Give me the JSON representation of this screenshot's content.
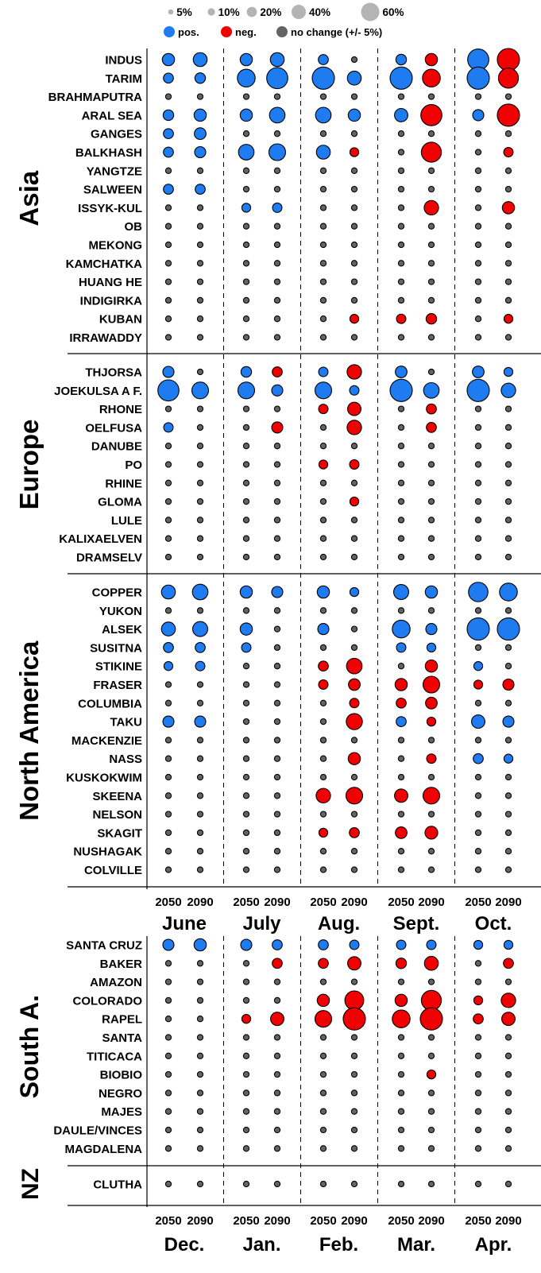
{
  "chart_data": {
    "type": "scatter",
    "title": "",
    "legend": {
      "size_labels": [
        "5%",
        "10%",
        "20%",
        "40%",
        "60%"
      ],
      "size_values": [
        5,
        10,
        20,
        40,
        60
      ],
      "color_labels": [
        "pos.",
        "neg.",
        "no change (+/- 5%)"
      ]
    },
    "colors": {
      "pos": "#1E7BF0",
      "neg": "#F00000",
      "none": "#646464",
      "legend_size": "#b4b4b4"
    },
    "encoding": "Each value is the percent change; sign gives color, magnitude gives size. |value| <= 5 is 'no change'.",
    "columns": [
      "2050",
      "2090",
      "2050",
      "2090",
      "2050",
      "2090",
      "2050",
      "2090",
      "2050",
      "2090"
    ],
    "months_top": [
      "June",
      "July",
      "Aug.",
      "Sept.",
      "Oct."
    ],
    "months_bottom": [
      "Dec.",
      "Jan.",
      "Feb.",
      "Mar.",
      "Apr."
    ],
    "groups": [
      {
        "region": "Asia",
        "rivers": [
          {
            "name": "INDUS",
            "values": [
              12,
              15,
              12,
              15,
              8,
              0,
              9,
              -12,
              28,
              -30
            ]
          },
          {
            "name": "TARIM",
            "values": [
              8,
              9,
              22,
              28,
              32,
              15,
              44,
              -22,
              40,
              -26
            ]
          },
          {
            "name": "BRAHMAPUTRA",
            "values": [
              0,
              0,
              0,
              0,
              0,
              0,
              0,
              0,
              0,
              0
            ]
          },
          {
            "name": "ARAL SEA",
            "values": [
              9,
              12,
              12,
              18,
              18,
              12,
              14,
              -28,
              10,
              -45
            ]
          },
          {
            "name": "GANGES",
            "values": [
              8,
              11,
              0,
              0,
              0,
              0,
              0,
              0,
              0,
              0
            ]
          },
          {
            "name": "BALKHASH",
            "values": [
              8,
              10,
              18,
              20,
              15,
              -6,
              0,
              -26,
              0,
              -7
            ]
          },
          {
            "name": "YANGTZE",
            "values": [
              0,
              0,
              0,
              0,
              0,
              0,
              0,
              0,
              0,
              0
            ]
          },
          {
            "name": "SALWEEN",
            "values": [
              8,
              8,
              0,
              0,
              0,
              0,
              0,
              0,
              0,
              0
            ]
          },
          {
            "name": "ISSYK-KUL",
            "values": [
              0,
              0,
              6,
              7,
              0,
              0,
              0,
              -16,
              0,
              -12
            ]
          },
          {
            "name": "OB",
            "values": [
              0,
              0,
              0,
              0,
              0,
              0,
              0,
              0,
              0,
              0
            ]
          },
          {
            "name": "MEKONG",
            "values": [
              0,
              0,
              0,
              0,
              0,
              0,
              0,
              0,
              0,
              0
            ]
          },
          {
            "name": "KAMCHATKA",
            "values": [
              0,
              0,
              0,
              0,
              0,
              0,
              0,
              0,
              0,
              0
            ]
          },
          {
            "name": "HUANG HE",
            "values": [
              0,
              0,
              0,
              0,
              0,
              0,
              0,
              0,
              0,
              0
            ]
          },
          {
            "name": "INDIGIRKA",
            "values": [
              0,
              0,
              0,
              0,
              0,
              0,
              0,
              0,
              0,
              0
            ]
          },
          {
            "name": "KUBAN",
            "values": [
              0,
              0,
              0,
              0,
              0,
              -6,
              -7,
              -9,
              0,
              -6
            ]
          },
          {
            "name": "IRRAWADDY",
            "values": [
              0,
              0,
              0,
              0,
              0,
              0,
              0,
              0,
              0,
              0
            ]
          }
        ]
      },
      {
        "region": "Europe",
        "rivers": [
          {
            "name": "THJORSA",
            "values": [
              10,
              0,
              9,
              -8,
              7,
              -16,
              11,
              0,
              11,
              6
            ]
          },
          {
            "name": "JOEKULSA A F.",
            "values": [
              28,
              20,
              20,
              10,
              20,
              7,
              32,
              18,
              30,
              16
            ]
          },
          {
            "name": "RHONE",
            "values": [
              0,
              0,
              0,
              0,
              -7,
              -14,
              0,
              -8,
              0,
              0
            ]
          },
          {
            "name": "OELFUSA",
            "values": [
              7,
              0,
              0,
              -10,
              0,
              -16,
              0,
              -8,
              0,
              0
            ]
          },
          {
            "name": "DANUBE",
            "values": [
              0,
              0,
              0,
              0,
              0,
              0,
              0,
              0,
              0,
              0
            ]
          },
          {
            "name": "PO",
            "values": [
              0,
              0,
              0,
              0,
              -6,
              -7,
              0,
              0,
              0,
              0
            ]
          },
          {
            "name": "RHINE",
            "values": [
              0,
              0,
              0,
              0,
              0,
              0,
              0,
              0,
              0,
              0
            ]
          },
          {
            "name": "GLOMA",
            "values": [
              0,
              0,
              0,
              0,
              0,
              -6,
              0,
              0,
              0,
              0
            ]
          },
          {
            "name": "LULE",
            "values": [
              0,
              0,
              0,
              0,
              0,
              0,
              0,
              0,
              0,
              0
            ]
          },
          {
            "name": "KALIXAELVEN",
            "values": [
              0,
              0,
              0,
              0,
              0,
              0,
              0,
              0,
              0,
              0
            ]
          },
          {
            "name": "DRAMSELV",
            "values": [
              0,
              0,
              0,
              0,
              0,
              0,
              0,
              0,
              0,
              0
            ]
          }
        ]
      },
      {
        "region": "North America",
        "rivers": [
          {
            "name": "COPPER",
            "values": [
              15,
              18,
              12,
              10,
              12,
              6,
              17,
              12,
              25,
              22
            ]
          },
          {
            "name": "YUKON",
            "values": [
              0,
              0,
              0,
              0,
              0,
              0,
              0,
              0,
              0,
              0
            ]
          },
          {
            "name": "ALSEK",
            "values": [
              15,
              17,
              12,
              0,
              10,
              0,
              22,
              10,
              45,
              42
            ]
          },
          {
            "name": "SUSITNA",
            "values": [
              8,
              8,
              7,
              0,
              0,
              0,
              7,
              6,
              0,
              0
            ]
          },
          {
            "name": "STIKINE",
            "values": [
              6,
              7,
              0,
              0,
              -8,
              -18,
              0,
              -12,
              6,
              0
            ]
          },
          {
            "name": "FRASER",
            "values": [
              0,
              0,
              0,
              0,
              -7,
              -11,
              -12,
              -20,
              -6,
              -10
            ]
          },
          {
            "name": "COLUMBIA",
            "values": [
              0,
              0,
              0,
              0,
              0,
              -7,
              -8,
              -11,
              0,
              0
            ]
          },
          {
            "name": "TAKU",
            "values": [
              10,
              10,
              0,
              0,
              0,
              -19,
              8,
              -6,
              14,
              10
            ]
          },
          {
            "name": "MACKENZIE",
            "values": [
              0,
              0,
              0,
              0,
              0,
              0,
              0,
              0,
              0,
              0
            ]
          },
          {
            "name": "NASS",
            "values": [
              0,
              0,
              0,
              0,
              0,
              -12,
              0,
              -7,
              8,
              6
            ]
          },
          {
            "name": "KUSKOKWIM",
            "values": [
              0,
              0,
              0,
              0,
              0,
              0,
              0,
              0,
              0,
              0
            ]
          },
          {
            "name": "SKEENA",
            "values": [
              0,
              0,
              0,
              0,
              -16,
              -20,
              -14,
              -20,
              0,
              0
            ]
          },
          {
            "name": "NELSON",
            "values": [
              0,
              0,
              0,
              0,
              0,
              0,
              0,
              0,
              0,
              0
            ]
          },
          {
            "name": "SKAGIT",
            "values": [
              0,
              0,
              0,
              0,
              -6,
              -8,
              -11,
              -13,
              0,
              0
            ]
          },
          {
            "name": "NUSHAGAK",
            "values": [
              0,
              0,
              0,
              0,
              0,
              0,
              0,
              0,
              0,
              0
            ]
          },
          {
            "name": "COLVILLE",
            "values": [
              0,
              0,
              0,
              0,
              0,
              0,
              0,
              0,
              0,
              0
            ]
          }
        ]
      },
      {
        "region": "South A.",
        "rivers": [
          {
            "name": "SANTA CRUZ",
            "values": [
              10,
              12,
              10,
              8,
              8,
              7,
              7,
              7,
              6,
              6
            ]
          },
          {
            "name": "BAKER",
            "values": [
              0,
              0,
              0,
              -8,
              -8,
              -14,
              -9,
              -15,
              0,
              -8
            ]
          },
          {
            "name": "AMAZON",
            "values": [
              0,
              0,
              0,
              0,
              0,
              0,
              0,
              0,
              0,
              0
            ]
          },
          {
            "name": "COLORADO",
            "values": [
              0,
              0,
              0,
              0,
              -12,
              -24,
              -12,
              -26,
              -6,
              -16
            ]
          },
          {
            "name": "RAPEL",
            "values": [
              0,
              0,
              -6,
              -14,
              -20,
              -42,
              -22,
              -45,
              -8,
              -14
            ]
          },
          {
            "name": "SANTA",
            "values": [
              0,
              0,
              0,
              0,
              0,
              0,
              0,
              0,
              0,
              0
            ]
          },
          {
            "name": "TITICACA",
            "values": [
              0,
              0,
              0,
              0,
              0,
              0,
              0,
              0,
              0,
              0
            ]
          },
          {
            "name": "BIOBIO",
            "values": [
              0,
              0,
              0,
              0,
              0,
              0,
              0,
              -6,
              0,
              0
            ]
          },
          {
            "name": "NEGRO",
            "values": [
              0,
              0,
              0,
              0,
              0,
              0,
              0,
              0,
              0,
              0
            ]
          },
          {
            "name": "MAJES",
            "values": [
              0,
              0,
              0,
              0,
              0,
              0,
              0,
              0,
              0,
              0
            ]
          },
          {
            "name": "DAULE/VINCES",
            "values": [
              0,
              0,
              0,
              0,
              0,
              0,
              0,
              0,
              0,
              0
            ]
          },
          {
            "name": "MAGDALENA",
            "values": [
              0,
              0,
              0,
              0,
              0,
              0,
              0,
              0,
              0,
              0
            ]
          }
        ]
      },
      {
        "region": "NZ",
        "rivers": [
          {
            "name": "CLUTHA",
            "values": [
              0,
              0,
              0,
              0,
              0,
              0,
              0,
              0,
              0,
              0
            ]
          }
        ]
      }
    ]
  }
}
